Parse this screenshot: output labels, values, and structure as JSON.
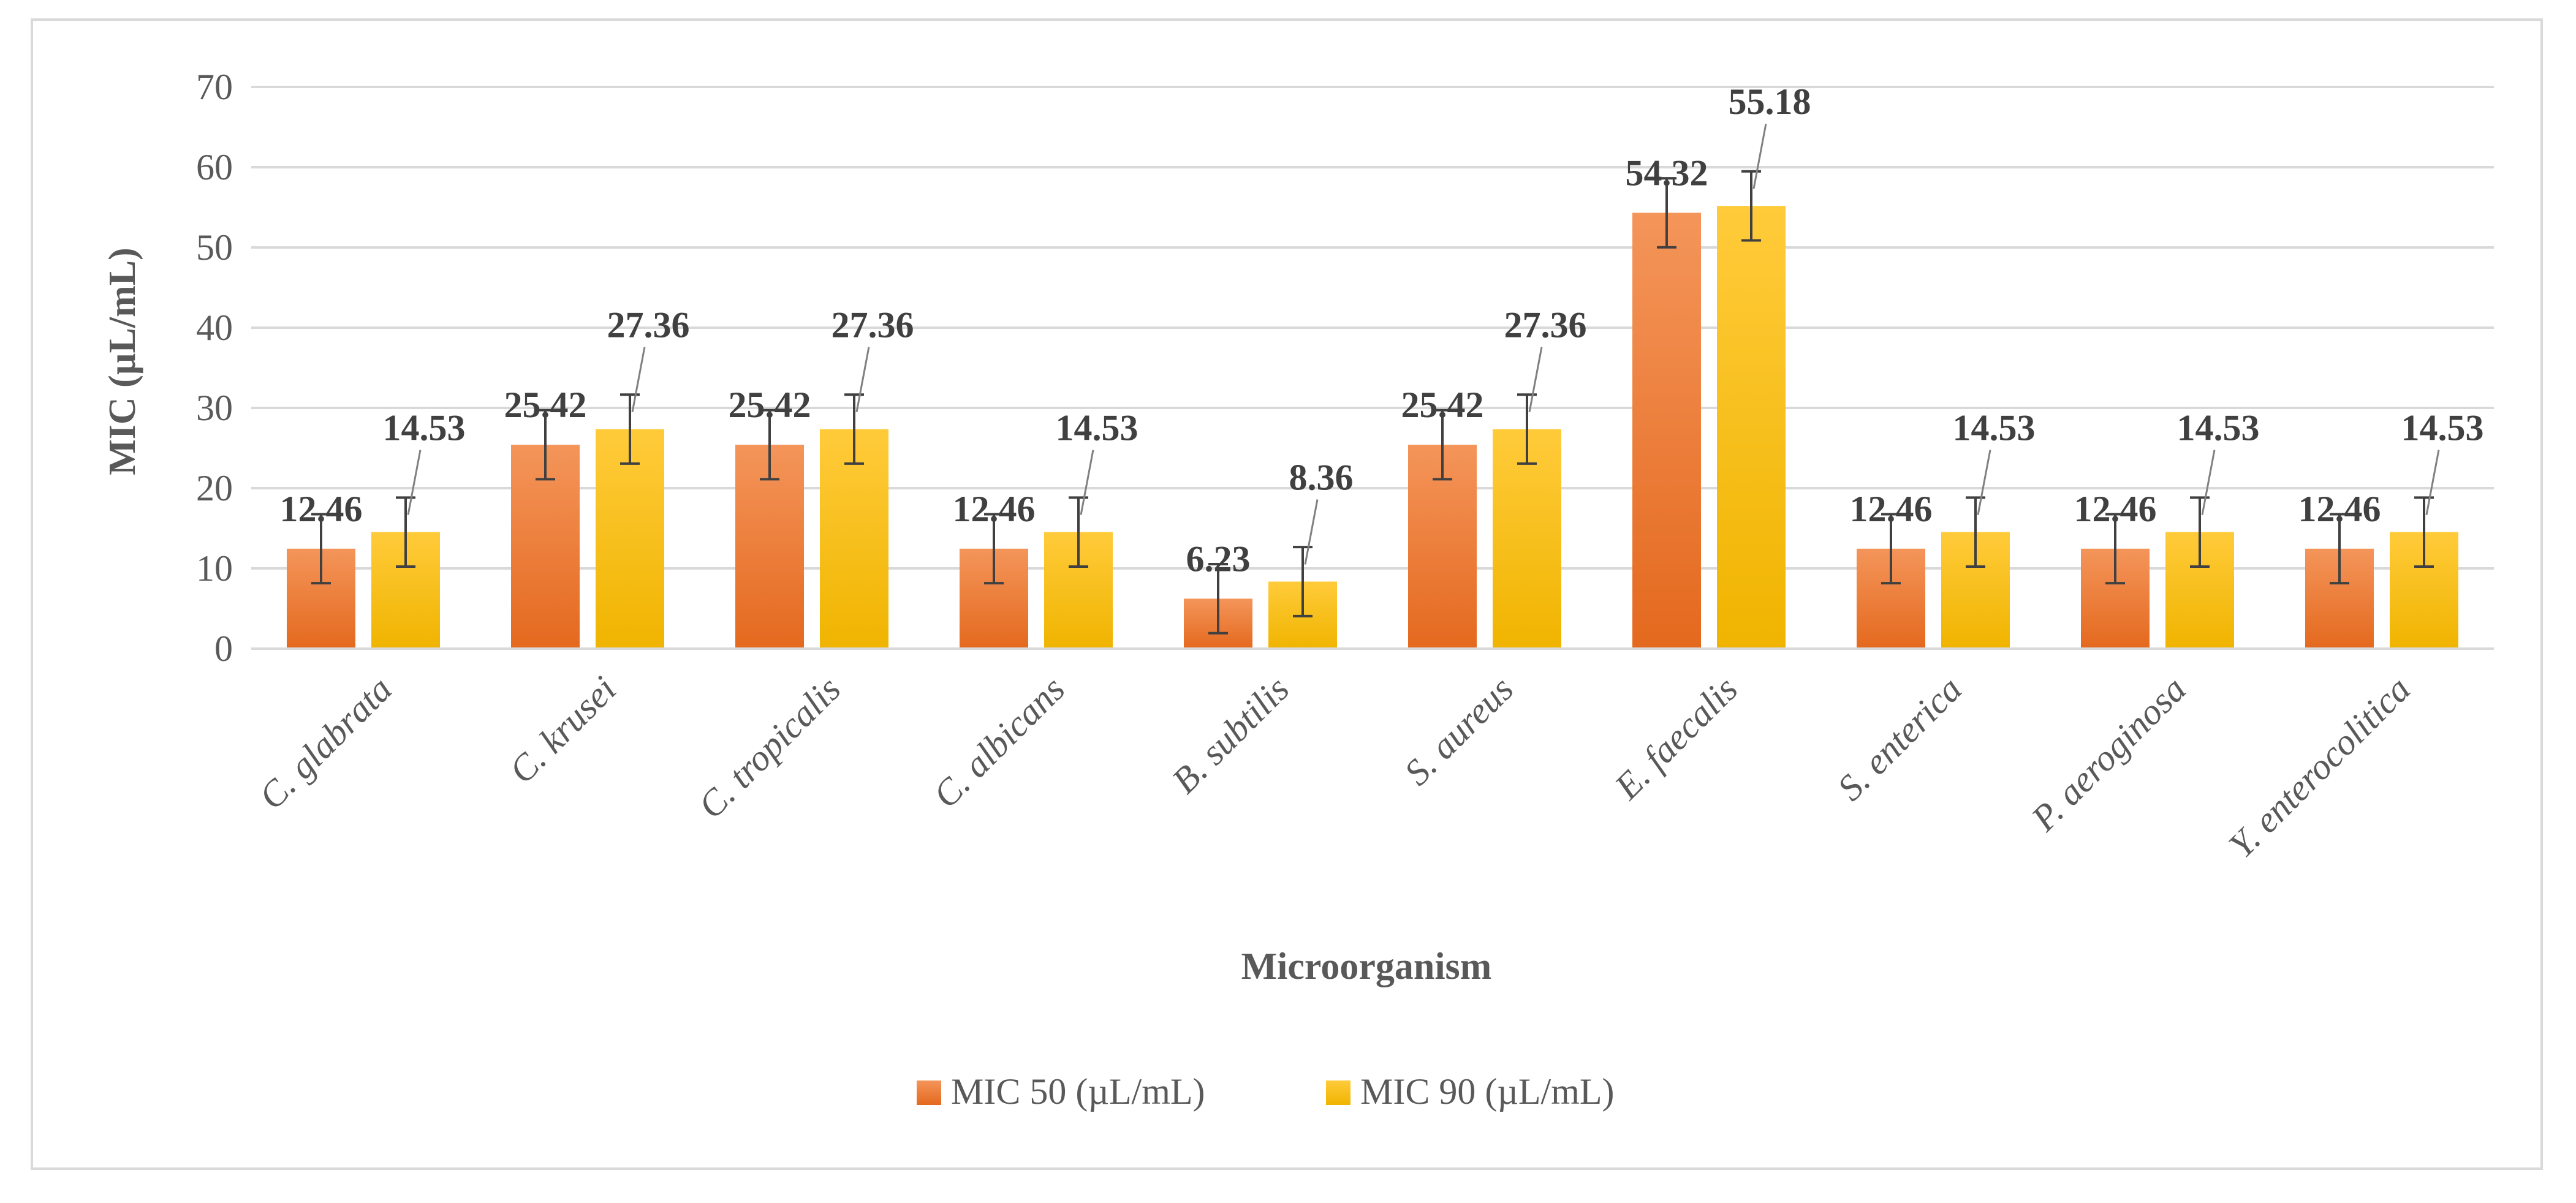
{
  "chart_data": {
    "type": "bar",
    "xlabel": "Microorganism",
    "ylabel": "MIC (µL/mL)",
    "ylim": [
      0,
      70
    ],
    "yticks": [
      0,
      10,
      20,
      30,
      40,
      50,
      60,
      70
    ],
    "grid": true,
    "legend_position": "bottom",
    "categories": [
      "C. glabrata",
      "C. krusei",
      "C. tropicalis",
      "C. albicans",
      "B. subtilis",
      "S. aureus",
      "E. faecalis",
      "S. enterica",
      "P. aeroginosa",
      "Y. enterocolitica"
    ],
    "series": [
      {
        "name": "MIC 50 (µL/mL)",
        "color": "#ED7D31",
        "values": [
          12.46,
          25.42,
          25.42,
          12.46,
          6.23,
          25.42,
          54.32,
          12.46,
          12.46,
          12.46
        ],
        "labels": [
          "12.46",
          "25.42",
          "25.42",
          "12.46",
          "6.23",
          "25.42",
          "54.32",
          "12.46",
          "12.46",
          "12.46"
        ],
        "error": [
          4.3,
          4.3,
          4.3,
          4.3,
          4.3,
          4.3,
          4.3,
          4.3,
          4.3,
          4.3
        ]
      },
      {
        "name": "MIC 90 (µL/mL)",
        "color": "#FFC000",
        "values": [
          14.53,
          27.36,
          27.36,
          14.53,
          8.36,
          27.36,
          55.18,
          14.53,
          14.53,
          14.53
        ],
        "labels": [
          "14.53",
          "27.36",
          "27.36",
          "14.53",
          "8.36",
          "27.36",
          "55.18",
          "14.53",
          "14.53",
          "14.53"
        ],
        "error": [
          4.3,
          4.3,
          4.3,
          4.3,
          4.3,
          4.3,
          4.3,
          4.3,
          4.3,
          4.3
        ]
      }
    ]
  }
}
